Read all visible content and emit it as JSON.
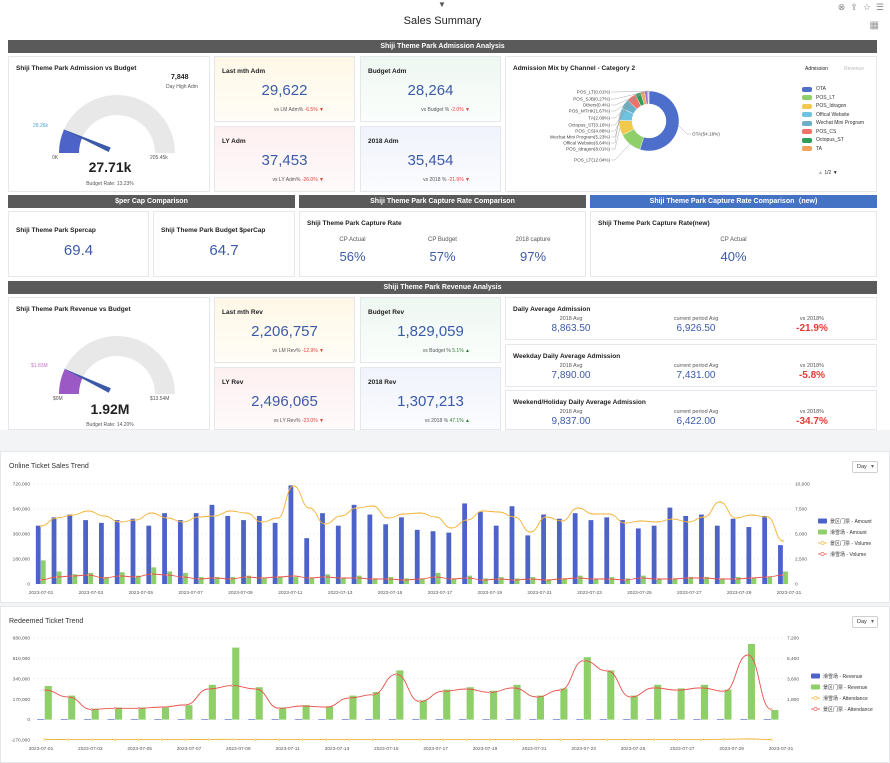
{
  "page_title": "Sales Summary",
  "sections": {
    "admission": "Shiji Theme Park Admission Analysis",
    "percap": "$per Cap Comparison",
    "capture": "Shiji Theme Park Capture Rate Comparison",
    "capture_new": "Shiji Theme Park Capture Rate Comparison（new)",
    "revenue": "Shiji Theme Park Revenue Analysis"
  },
  "adm_gauge": {
    "title": "Shiji Theme Park Admission vs Budget",
    "high_value": "7,848",
    "high_label": "Day High Adm",
    "marker": "28.26k",
    "min": "0K",
    "max": "205.45k",
    "value": "27.71k",
    "rate_label": "Budget Rate:",
    "rate": "13.23%",
    "fill_fraction": 0.1323
  },
  "adm_kpis": [
    {
      "title": "Last mth Adm",
      "value": "29,622",
      "sub": "vs LM Adm%",
      "pct": "-6.5%",
      "dir": "neg"
    },
    {
      "title": "Budget Adm",
      "value": "28,264",
      "sub": "vs Budget %",
      "pct": "-2.0%",
      "dir": "neg"
    },
    {
      "title": "LY Adm",
      "value": "37,453",
      "sub": "vs LY Adm%",
      "pct": "-26.0%",
      "dir": "neg"
    },
    {
      "title": "2018 Adm",
      "value": "35,454",
      "sub": "vs 2018 %",
      "pct": "-21.9%",
      "dir": "neg"
    }
  ],
  "mix": {
    "title": "Admission Mix by Channel - Category 2",
    "tab_active": "Admission",
    "tab_inactive": "Revenue",
    "pie_labels": [
      "POS_LT(0.01%)",
      "POS_SJB(0.27%)",
      "Others(0.4%)",
      "POS_MTHK(1.67%)",
      "TA(2.09%)",
      "Octopus_ST(3.16%)",
      "POS_CS(4.88%)",
      "Wechat Mini Program(5.23%)",
      "Offical Website(6.64%)",
      "POS_Idragon(8.01%)",
      "POS_LT(12.04%)",
      "OTA(54.18%)"
    ],
    "legend": [
      {
        "name": "OTA",
        "color": "#4e6ecb"
      },
      {
        "name": "POS_LT",
        "color": "#8fcf6a"
      },
      {
        "name": "POS_Idragon",
        "color": "#f2c94c"
      },
      {
        "name": "Offical Website",
        "color": "#6fc2e0"
      },
      {
        "name": "Wechat Mini Program",
        "color": "#6ab0c8"
      },
      {
        "name": "POS_CS",
        "color": "#f07167"
      },
      {
        "name": "Octopus_ST",
        "color": "#2e9e58"
      },
      {
        "name": "TA",
        "color": "#f5a25d"
      }
    ],
    "pager": "1/2",
    "slices": [
      54.18,
      12.04,
      8.01,
      6.64,
      5.23,
      4.88,
      3.16,
      2.09,
      1.67,
      0.4,
      0.27,
      0.01
    ],
    "slice_colors": [
      "#4e6ecb",
      "#8fcf6a",
      "#f2c94c",
      "#6fc2e0",
      "#6ab0c8",
      "#f07167",
      "#2e9e58",
      "#f5a25d",
      "#9b6fd1",
      "#c97bb3",
      "#7f8c8d",
      "#d4a76a"
    ]
  },
  "percap": [
    {
      "title": "Shiji Theme Park Spercap",
      "value": "69.4"
    },
    {
      "title": "Shiji Theme Park Budget $perCap",
      "value": "64.7"
    }
  ],
  "capture": {
    "title": "Shiji Theme Park Capture Rate",
    "items": [
      {
        "label": "CP Actual",
        "value": "56%"
      },
      {
        "label": "CP Budget",
        "value": "57%"
      },
      {
        "label": "2018 capture",
        "value": "97%"
      }
    ]
  },
  "capture_new": {
    "title": "Shiji Theme Park Capture Rate(new)",
    "label": "CP Actual",
    "value": "40%"
  },
  "rev_gauge": {
    "title": "Shiji Theme Park Revenue vs Budget",
    "marker": "$1.83M",
    "min": "$0M",
    "max": "$13.54M",
    "value": "1.92M",
    "rate_label": "Budget Rate:",
    "rate": "14.20%",
    "fill_fraction": 0.142
  },
  "rev_kpis": [
    {
      "title": "Last mth Rev",
      "value": "2,206,757",
      "sub": "vs LM Rev%",
      "pct": "-12.9%",
      "dir": "neg"
    },
    {
      "title": "Budget Rev",
      "value": "1,829,059",
      "sub": "vs Budget %",
      "pct": "5.1%",
      "dir": "pos"
    },
    {
      "title": "LY Rev",
      "value": "2,496,065",
      "sub": "vs LY Rev%",
      "pct": "-23.0%",
      "dir": "neg"
    },
    {
      "title": "2018 Rev",
      "value": "1,307,213",
      "sub": "vs 2018 %",
      "pct": "47.1%",
      "dir": "pos"
    }
  ],
  "daily_avg": [
    {
      "title": "Daily Average Admission",
      "avg_label": "2018 Avg",
      "avg": "8,863.50",
      "cur_label": "current period Avg",
      "cur": "6,926.50",
      "vs_label": "vs 2018%",
      "vs": "-21.9%"
    },
    {
      "title": "Weekday Daily Average Admission",
      "avg_label": "2018 Avg",
      "avg": "7,890.00",
      "cur_label": "current period Avg",
      "cur": "7,431.00",
      "vs_label": "vs 2018%",
      "vs": "-5.8%"
    },
    {
      "title": "Weekend/Holiday Daily Average Admission",
      "avg_label": "2018 Avg",
      "avg": "9,837.00",
      "cur_label": "current period Avg",
      "cur": "6,422.00",
      "vs_label": "vs 2018%",
      "vs": "-34.7%"
    }
  ],
  "online_chart": {
    "title": "Online Ticket Sales Trend",
    "select": "Day"
  },
  "redeemed_chart": {
    "title": "Redeemed Ticket Trend",
    "select": "Day"
  },
  "chart_data": [
    {
      "type": "bar",
      "title": "Online Ticket Sales Trend",
      "ylim": [
        0,
        720000
      ],
      "y_ticks": [
        "720,000",
        "540,000",
        "360,000",
        "180,000",
        "0"
      ],
      "y2lim": [
        0,
        10000
      ],
      "y2_ticks": [
        "10,000",
        "7,500",
        "5,000",
        "2,500",
        "0"
      ],
      "x_ticks": [
        "2023-07-01",
        "2023-07-03",
        "2023-07-05",
        "2023-07-07",
        "2023-07-09",
        "2023-07-11",
        "2023-07-13",
        "2023-07-15",
        "2023-07-17",
        "2023-07-19",
        "2023-07-21",
        "2023-07-23",
        "2023-07-25",
        "2023-07-27",
        "2023-07-29",
        "2023-07-31"
      ],
      "series": [
        {
          "name": "景区门票 - Amount",
          "color": "#4e63c8",
          "axis": "left",
          "kind": "bar",
          "values": [
            420000,
            480000,
            500000,
            460000,
            440000,
            460000,
            470000,
            420000,
            510000,
            460000,
            510000,
            570000,
            490000,
            460000,
            490000,
            440000,
            710000,
            330000,
            510000,
            420000,
            570000,
            500000,
            430000,
            480000,
            390000,
            380000,
            370000,
            580000,
            520000,
            420000,
            560000,
            350000,
            500000,
            470000,
            510000,
            460000,
            480000,
            460000,
            400000,
            420000,
            550000,
            490000,
            500000,
            420000,
            470000,
            410000,
            490000,
            280000
          ]
        },
        {
          "name": "滑雪场 - Amount",
          "color": "#8fcf6a",
          "axis": "left",
          "kind": "bar",
          "values": [
            170000,
            90000,
            70000,
            80000,
            50000,
            85000,
            60000,
            120000,
            90000,
            80000,
            50000,
            50000,
            50000,
            60000,
            40000,
            50000,
            50000,
            40000,
            70000,
            40000,
            60000,
            40000,
            50000,
            40000,
            40000,
            80000,
            40000,
            60000,
            40000,
            50000,
            40000,
            50000,
            30000,
            40000,
            60000,
            40000,
            50000,
            40000,
            60000,
            40000,
            40000,
            50000,
            50000,
            40000,
            50000,
            40000,
            50000,
            90000
          ]
        },
        {
          "name": "景区门票 - Volume",
          "color": "#f2b233",
          "axis": "right",
          "kind": "line",
          "values": [
            5800,
            6600,
            6900,
            7300,
            6800,
            6200,
            6400,
            7100,
            6600,
            6200,
            6700,
            6800,
            7300,
            7100,
            6200,
            6600,
            9800,
            7600,
            6000,
            6800,
            7600,
            7800,
            6600,
            7000,
            7100,
            6700,
            5600,
            6400,
            7300,
            7200,
            6700,
            5200,
            6700,
            6300,
            7600,
            7000,
            7000,
            6100,
            6300,
            6200,
            6500,
            6200,
            6700,
            8200,
            6600,
            6900,
            6700,
            4300
          ]
        },
        {
          "name": "滑雪场 - Volume",
          "color": "#e8524a",
          "axis": "right",
          "kind": "line",
          "values": [
            400,
            700,
            800,
            900,
            600,
            800,
            700,
            1000,
            900,
            700,
            500,
            600,
            500,
            700,
            600,
            700,
            800,
            600,
            700,
            600,
            600,
            500,
            500,
            400,
            500,
            700,
            500,
            600,
            400,
            500,
            400,
            500,
            400,
            500,
            600,
            500,
            500,
            400,
            600,
            500,
            500,
            600,
            600,
            500,
            500,
            600,
            700,
            900
          ]
        }
      ]
    },
    {
      "type": "bar",
      "title": "Redeemed Ticket Trend",
      "ylim": [
        -170000,
        680000
      ],
      "y_ticks": [
        "680,000",
        "510,000",
        "340,000",
        "170,000",
        "0",
        "-170,000"
      ],
      "y2lim": [
        -1800,
        7200
      ],
      "y2_ticks": [
        "7,200",
        "5,400",
        "3,600",
        "1,800",
        ""
      ],
      "x_ticks": [
        "2023-07-01",
        "2023-07-03",
        "2023-07-05",
        "2023-07-07",
        "2023-07-09",
        "2023-07-11",
        "2023-07-13",
        "2023-07-15",
        "2023-07-17",
        "2023-07-19",
        "2023-07-21",
        "2023-07-23",
        "2023-07-25",
        "2023-07-27",
        "2023-07-29",
        "2023-07-31"
      ],
      "series": [
        {
          "name": "滑雪场 - Revenue",
          "color": "#4e63c8",
          "axis": "left",
          "kind": "bar",
          "values": [
            5000,
            5000,
            5000,
            5000,
            5000,
            5000,
            5000,
            5000,
            5000,
            5000,
            5000,
            5000,
            5000,
            5000,
            5000,
            5000,
            5000,
            5000,
            5000,
            5000,
            5000,
            5000,
            5000,
            5000,
            5000,
            5000,
            5000,
            5000,
            5000,
            5000,
            5000,
            5000
          ]
        },
        {
          "name": "景区门票 - Revenue",
          "color": "#8fcf6a",
          "axis": "left",
          "kind": "bar",
          "values": [
            280000,
            200000,
            90000,
            100000,
            100000,
            100000,
            120000,
            290000,
            600000,
            270000,
            100000,
            120000,
            110000,
            200000,
            230000,
            410000,
            160000,
            250000,
            270000,
            240000,
            290000,
            200000,
            260000,
            520000,
            410000,
            200000,
            290000,
            260000,
            290000,
            250000,
            630000,
            80000
          ]
        },
        {
          "name": "滑雪场 - Attendance",
          "color": "#f2b233",
          "axis": "right",
          "kind": "line",
          "values": [
            -1750,
            -1760,
            -1760,
            -1760,
            -1760,
            -1760,
            -1760,
            -1750,
            -1740,
            -1760,
            -1760,
            -1760,
            -1760,
            -1760,
            -1760,
            -1760,
            -1760,
            -1760,
            -1760,
            -1760,
            -1760,
            -1760,
            -1760,
            -1760,
            -1760,
            -1760,
            -1760,
            -1760,
            -1760,
            -1740,
            -1700,
            -1760
          ]
        },
        {
          "name": "景区门票 - Attendance",
          "color": "#e8524a",
          "axis": "right",
          "kind": "line",
          "values": [
            2600,
            2000,
            900,
            1000,
            1000,
            1100,
            1300,
            2700,
            3000,
            2700,
            1000,
            1200,
            1100,
            1900,
            2200,
            4000,
            1600,
            2500,
            2700,
            2400,
            2800,
            2000,
            2600,
            5200,
            4300,
            2000,
            2800,
            2600,
            2800,
            2500,
            5700,
            900
          ]
        }
      ]
    }
  ]
}
